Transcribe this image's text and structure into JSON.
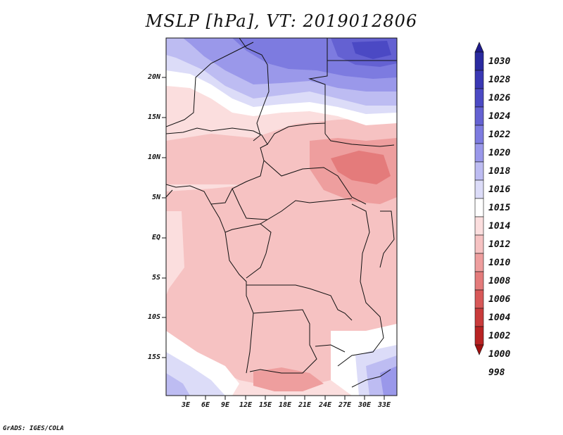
{
  "title": "MSLP [hPa], VT: 2019012806",
  "credit": "GrADS: IGES/COLA",
  "latitude_labels": [
    "20N",
    "15N",
    "10N",
    "5N",
    "EQ",
    "5S",
    "10S",
    "15S"
  ],
  "longitude_labels": [
    "3E",
    "6E",
    "9E",
    "12E",
    "15E",
    "18E",
    "21E",
    "24E",
    "27E",
    "30E",
    "33E"
  ],
  "colorbar": {
    "levels": [
      "1030",
      "1028",
      "1026",
      "1024",
      "1022",
      "1020",
      "1018",
      "1016",
      "1015",
      "1014",
      "1012",
      "1010",
      "1008",
      "1006",
      "1004",
      "1002",
      "1000",
      "998"
    ],
    "colors": [
      "#1e1a8c",
      "#2a2aa0",
      "#3a38b4",
      "#4b49c4",
      "#6461d2",
      "#7d7be0",
      "#9a98ea",
      "#bdbcf2",
      "#dcdcf8",
      "#ffffff",
      "#fbdede",
      "#f6c2c2",
      "#ee9e9e",
      "#e47b7b",
      "#d85858",
      "#c93b3b",
      "#b82323",
      "#a01010"
    ]
  }
}
